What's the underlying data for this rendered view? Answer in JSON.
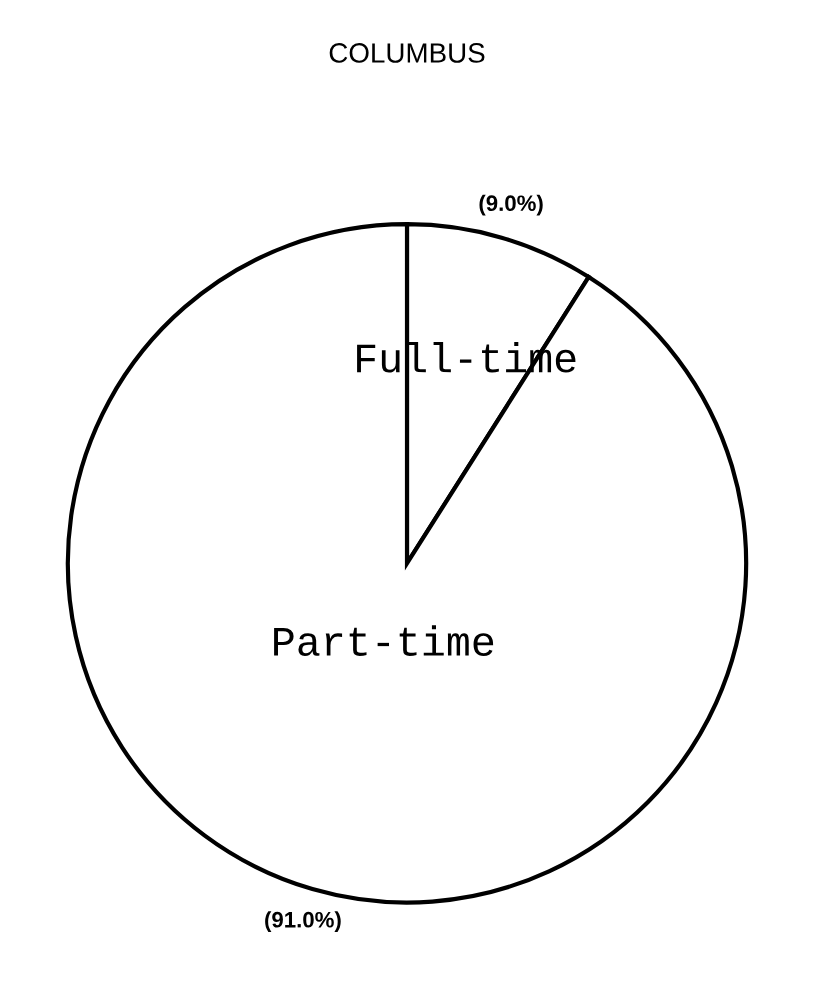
{
  "chart_data": {
    "type": "pie",
    "title": "COLUMBUS",
    "categories": [
      "Full-time",
      "Part-time"
    ],
    "values": [
      9.0,
      91.0
    ],
    "colors": [
      "#ffffff",
      "#ffffff"
    ],
    "value_labels": [
      "(9.0%)",
      "(91.0%)"
    ]
  }
}
